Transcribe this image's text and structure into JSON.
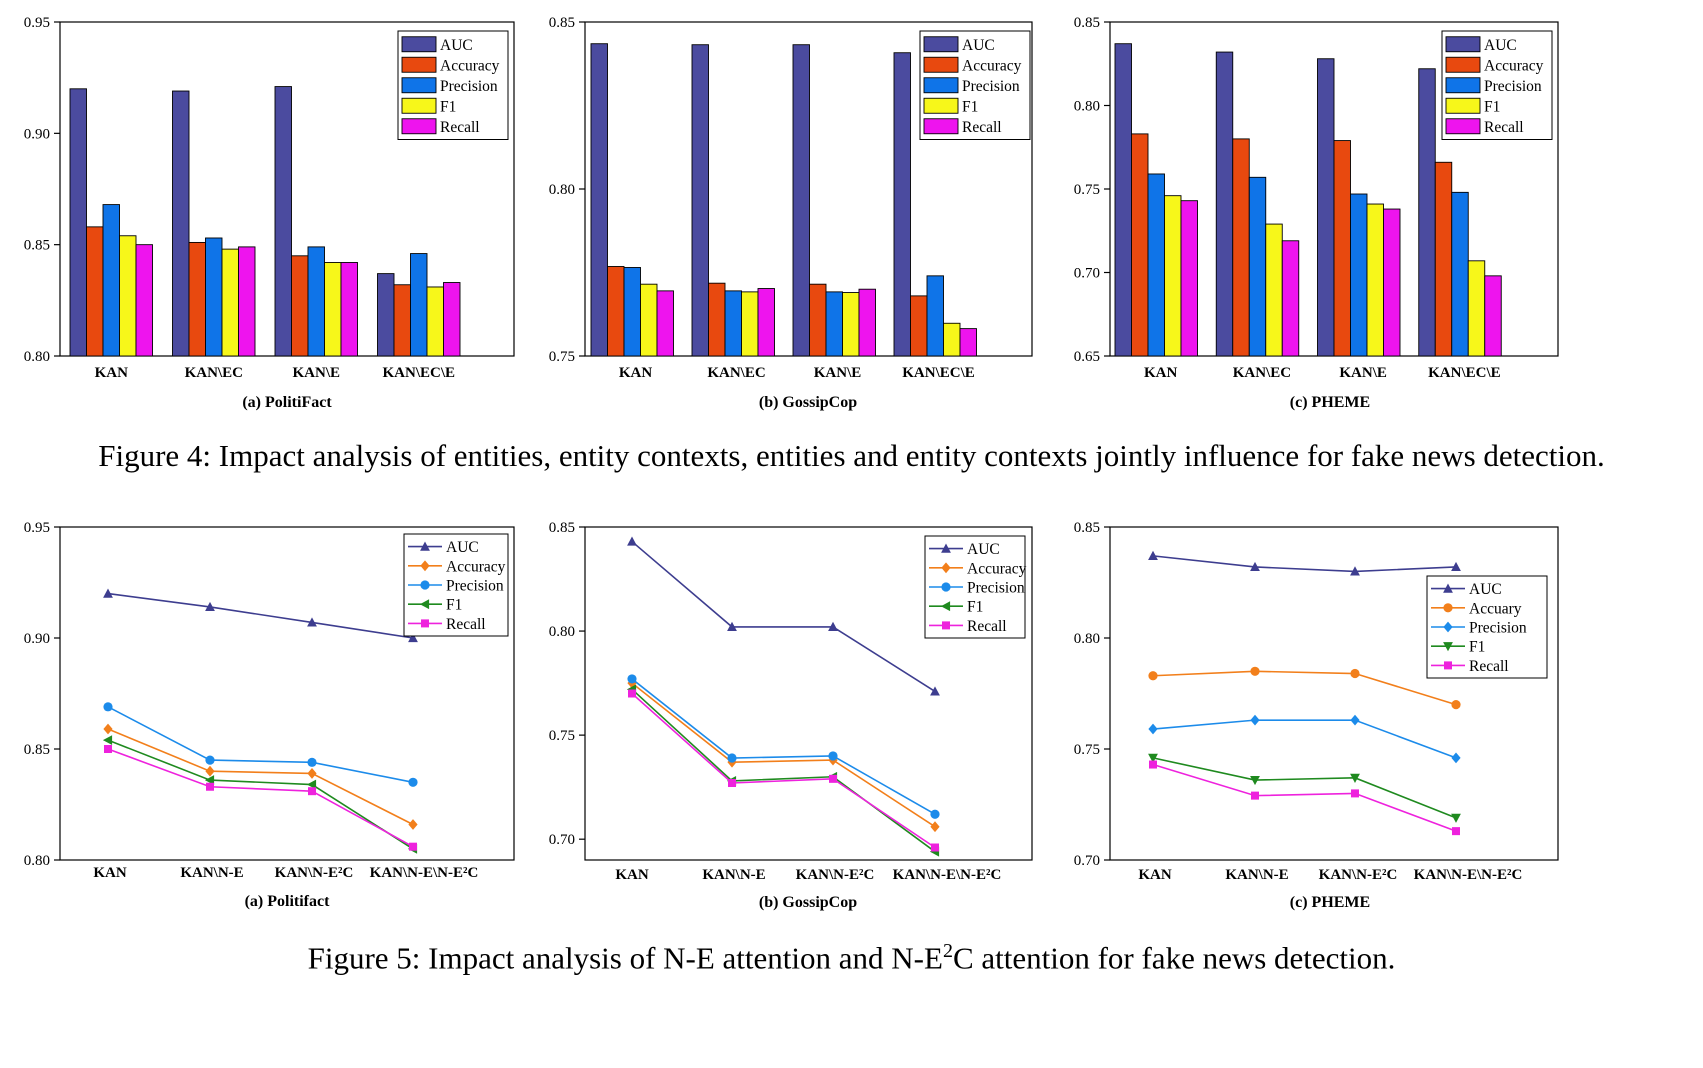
{
  "figure4": {
    "caption": "Figure 4: Impact analysis of entities, entity contexts, entities and entity contexts jointly influence for fake news detection."
  },
  "figure5": {
    "caption_prefix": "Figure 5: Impact analysis of N-E attention and N-E",
    "caption_sup": "2",
    "caption_suffix": "C attention for fake news detection."
  },
  "colors": {
    "bar_auc": "#4B4B9F",
    "bar_accuracy": "#E8490F",
    "bar_precision": "#0F74E8",
    "bar_f1": "#F7F71A",
    "bar_recall": "#EE14EE",
    "line_auc": "#3D3D8F",
    "line_accuracy": "#F27F1B",
    "line_precision": "#1C8BEA",
    "line_f1": "#1F8A1F",
    "line_recall": "#EE22DD"
  },
  "chart_data": [
    {
      "type": "bar",
      "subcaption": "(a) PolitiFact",
      "categories": [
        "KAN",
        "KAN\\EC",
        "KAN\\E",
        "KAN\\EC\\E"
      ],
      "ylim": [
        0.8,
        0.95
      ],
      "yticks": [
        "0.80",
        "0.85",
        "0.90",
        "0.95"
      ],
      "legend_position": "top-right",
      "series": [
        {
          "name": "AUC",
          "values": [
            0.92,
            0.919,
            0.921,
            0.837
          ]
        },
        {
          "name": "Accuracy",
          "values": [
            0.858,
            0.851,
            0.845,
            0.832
          ]
        },
        {
          "name": "Precision",
          "values": [
            0.868,
            0.853,
            0.849,
            0.846
          ]
        },
        {
          "name": "F1",
          "values": [
            0.854,
            0.848,
            0.842,
            0.831
          ]
        },
        {
          "name": "Recall",
          "values": [
            0.85,
            0.849,
            0.842,
            0.833
          ]
        }
      ]
    },
    {
      "type": "bar",
      "subcaption": "(b) GossipCop",
      "categories": [
        "KAN",
        "KAN\\EC",
        "KAN\\E",
        "KAN\\EC\\E"
      ],
      "ylim": [
        0.75,
        0.85
      ],
      "yticks": [
        "0.75",
        "0.80",
        "0.85"
      ],
      "legend_position": "top-right",
      "series": [
        {
          "name": "AUC",
          "values": [
            0.8435,
            0.8432,
            0.8432,
            0.8408
          ]
        },
        {
          "name": "Accuracy",
          "values": [
            0.7768,
            0.7718,
            0.7715,
            0.768
          ]
        },
        {
          "name": "Precision",
          "values": [
            0.7765,
            0.7695,
            0.7692,
            0.774
          ]
        },
        {
          "name": "F1",
          "values": [
            0.7715,
            0.7692,
            0.769,
            0.7598
          ]
        },
        {
          "name": "Recall",
          "values": [
            0.7695,
            0.7702,
            0.77,
            0.7582
          ]
        }
      ]
    },
    {
      "type": "bar",
      "subcaption": "(c) PHEME",
      "categories": [
        "KAN",
        "KAN\\EC",
        "KAN\\E",
        "KAN\\EC\\E"
      ],
      "ylim": [
        0.65,
        0.85
      ],
      "yticks": [
        "0.65",
        "0.70",
        "0.75",
        "0.80",
        "0.85"
      ],
      "legend_position": "top-right",
      "series": [
        {
          "name": "AUC",
          "values": [
            0.837,
            0.832,
            0.828,
            0.822
          ]
        },
        {
          "name": "Accuracy",
          "values": [
            0.783,
            0.78,
            0.779,
            0.766
          ]
        },
        {
          "name": "Precision",
          "values": [
            0.759,
            0.757,
            0.747,
            0.748
          ]
        },
        {
          "name": "F1",
          "values": [
            0.746,
            0.729,
            0.741,
            0.707
          ]
        },
        {
          "name": "Recall",
          "values": [
            0.743,
            0.719,
            0.738,
            0.698
          ]
        }
      ]
    },
    {
      "type": "line",
      "subcaption": "(a) Politifact",
      "categories": [
        "KAN",
        "KAN\\N-E",
        "KAN\\N-E²C",
        "KAN\\N-E\\N-E²C"
      ],
      "ylim": [
        0.8,
        0.95
      ],
      "yticks": [
        "0.80",
        "0.85",
        "0.90",
        "0.95"
      ],
      "legend_position": "top-right",
      "series": [
        {
          "name": "AUC",
          "marker": "triangle-up",
          "values": [
            0.92,
            0.914,
            0.907,
            0.9
          ]
        },
        {
          "name": "Accuracy",
          "marker": "diamond",
          "values": [
            0.859,
            0.84,
            0.839,
            0.816
          ]
        },
        {
          "name": "Precision",
          "marker": "circle",
          "values": [
            0.869,
            0.845,
            0.844,
            0.835
          ]
        },
        {
          "name": "F1",
          "marker": "triangle-left",
          "values": [
            0.854,
            0.836,
            0.834,
            0.805
          ]
        },
        {
          "name": "Recall",
          "marker": "square",
          "values": [
            0.85,
            0.833,
            0.831,
            0.806
          ]
        }
      ]
    },
    {
      "type": "line",
      "subcaption": "(b) GossipCop",
      "categories": [
        "KAN",
        "KAN\\N-E",
        "KAN\\N-E²C",
        "KAN\\N-E\\N-E²C"
      ],
      "ylim": [
        0.69,
        0.85
      ],
      "yticks": [
        "0.70",
        "0.75",
        "0.80",
        "0.85"
      ],
      "legend_position": "top-right",
      "series": [
        {
          "name": "AUC",
          "marker": "triangle-up",
          "values": [
            0.843,
            0.802,
            0.802,
            0.771
          ]
        },
        {
          "name": "Accuracy",
          "marker": "diamond",
          "values": [
            0.775,
            0.737,
            0.738,
            0.706
          ]
        },
        {
          "name": "Precision",
          "marker": "circle",
          "values": [
            0.777,
            0.739,
            0.74,
            0.712
          ]
        },
        {
          "name": "F1",
          "marker": "triangle-left",
          "values": [
            0.772,
            0.728,
            0.73,
            0.694
          ]
        },
        {
          "name": "Recall",
          "marker": "square",
          "values": [
            0.77,
            0.727,
            0.729,
            0.696
          ]
        }
      ]
    },
    {
      "type": "line",
      "subcaption": "(c) PHEME",
      "categories": [
        "KAN",
        "KAN\\N-E",
        "KAN\\N-E²C",
        "KAN\\N-E\\N-E²C"
      ],
      "ylim": [
        0.7,
        0.85
      ],
      "yticks": [
        "0.70",
        "0.75",
        "0.80",
        "0.85"
      ],
      "legend_position": "top-right",
      "series": [
        {
          "name": "AUC",
          "marker": "triangle-up",
          "values": [
            0.837,
            0.832,
            0.83,
            0.832
          ]
        },
        {
          "name": "Accuary",
          "marker": "circle",
          "values": [
            0.783,
            0.785,
            0.784,
            0.77
          ]
        },
        {
          "name": "Precision",
          "marker": "diamond",
          "values": [
            0.759,
            0.763,
            0.763,
            0.746
          ]
        },
        {
          "name": "F1",
          "marker": "triangle-down",
          "values": [
            0.746,
            0.736,
            0.737,
            0.719
          ]
        },
        {
          "name": "Recall",
          "marker": "square",
          "values": [
            0.743,
            0.729,
            0.73,
            0.713
          ]
        }
      ]
    }
  ]
}
